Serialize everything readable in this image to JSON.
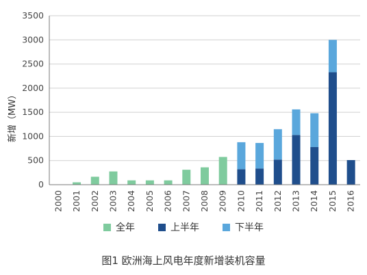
{
  "chart_data": {
    "type": "bar",
    "stacked": true,
    "categories": [
      "2000",
      "2001",
      "2002",
      "2003",
      "2004",
      "2005",
      "2006",
      "2007",
      "2008",
      "2009",
      "2010",
      "2011",
      "2012",
      "2013",
      "2014",
      "2015",
      "2016"
    ],
    "series": [
      {
        "name": "全年",
        "color": "#7fcb9e",
        "values": [
          0,
          50,
          165,
          275,
          90,
          90,
          90,
          310,
          360,
          575,
          0,
          0,
          0,
          0,
          0,
          0,
          0
        ]
      },
      {
        "name": "上半年",
        "color": "#1f4e8c",
        "values": [
          0,
          0,
          0,
          0,
          0,
          0,
          0,
          0,
          0,
          0,
          320,
          335,
          520,
          1030,
          780,
          2330,
          510
        ]
      },
      {
        "name": "下半年",
        "color": "#5aa7dc",
        "values": [
          0,
          0,
          0,
          0,
          0,
          0,
          0,
          0,
          0,
          0,
          560,
          530,
          630,
          530,
          700,
          670,
          0
        ]
      }
    ],
    "ylabel": "新增（MW）",
    "ylim": [
      0,
      3500
    ],
    "yticks": [
      0,
      500,
      1000,
      1500,
      2000,
      2500,
      3000,
      3500
    ],
    "grid": true,
    "legend_position": "bottom",
    "caption": "图1 欧洲海上风电年度新增装机容量"
  }
}
